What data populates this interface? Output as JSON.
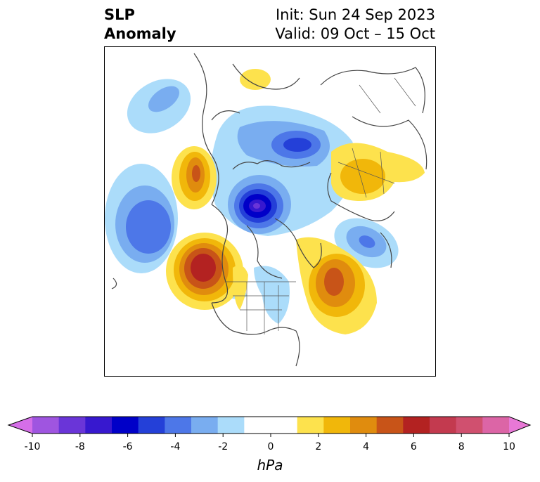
{
  "header": {
    "title_line1": "SLP",
    "title_line2": "Anomaly",
    "init_label": "Init: Sun 24 Sep 2023",
    "valid_label": "Valid: 09 Oct – 15 Oct"
  },
  "colorbar": {
    "unit": "hPa",
    "ticks": [
      "-10",
      "-8",
      "-6",
      "-4",
      "-2",
      "0",
      "2",
      "4",
      "6",
      "8",
      "10"
    ],
    "colors": [
      "#d56ee8",
      "#9f55e0",
      "#6a35d8",
      "#3718cf",
      "#0000c8",
      "#2440d8",
      "#4d77e8",
      "#79adf0",
      "#abdcfa",
      "#ffffff",
      "#ffffff",
      "#fde24d",
      "#f1b70a",
      "#e08c0e",
      "#c85418",
      "#b32221",
      "#c33a4f",
      "#d0506f",
      "#dc65a6",
      "#e878d6"
    ]
  },
  "map": {
    "projection": "north polar stereographic",
    "region": "Northern Hemisphere"
  }
}
